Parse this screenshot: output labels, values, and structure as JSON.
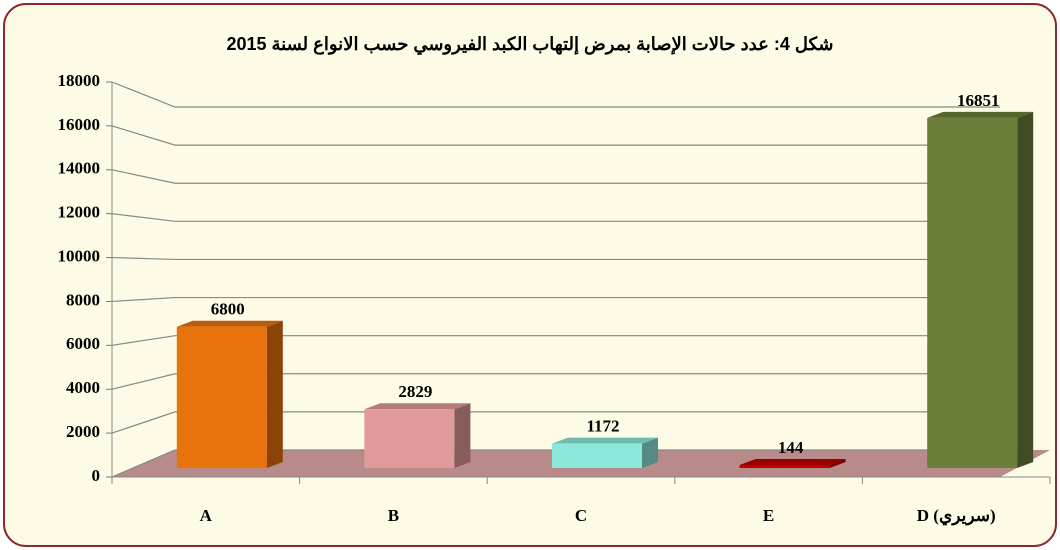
{
  "chart_data": {
    "type": "bar3d",
    "title": "شكل 4: عدد حالات الإصابة بمرض إلتهاب الكبد الفيروسي حسب الانواع لسنة 2015",
    "categories": [
      "A",
      "B",
      "C",
      "E",
      "D (سريري)"
    ],
    "values": [
      6800,
      2829,
      1172,
      144,
      16851
    ],
    "colors": [
      "#e8720c",
      "#e09a9a",
      "#8de8dc",
      "#c00000",
      "#6b7f3a"
    ],
    "ylim": [
      0,
      18000
    ],
    "yticks": [
      0,
      2000,
      4000,
      6000,
      8000,
      10000,
      12000,
      14000,
      16000,
      18000
    ],
    "grid": true
  }
}
